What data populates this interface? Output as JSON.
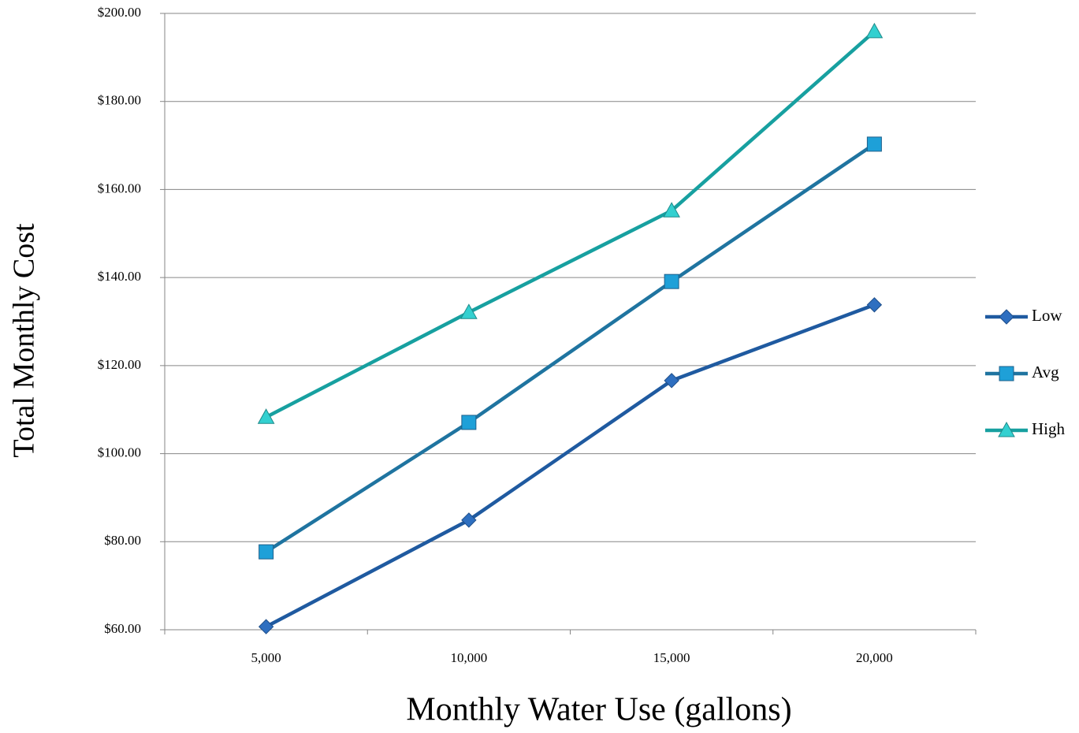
{
  "chart_data": {
    "type": "line",
    "x_label": "Monthly Water Use (gallons)",
    "y_label": "Total Monthly Cost",
    "categories": [
      "5,000",
      "10,000",
      "15,000",
      "20,000"
    ],
    "series": [
      {
        "name": "Low",
        "color": "#1f5aa0",
        "marker_color": "#2e6fc0",
        "marker": "diamond",
        "values": [
          60.7,
          84.9,
          116.6,
          133.8
        ]
      },
      {
        "name": "Avg",
        "color": "#1f74a0",
        "marker_color": "#1ea0d8",
        "marker": "square",
        "values": [
          77.7,
          107.1,
          139.1,
          170.3
        ]
      },
      {
        "name": "High",
        "color": "#17a0a0",
        "marker_color": "#33d0d0",
        "marker": "triangle",
        "values": [
          108.3,
          132.1,
          155.2,
          195.9
        ]
      }
    ],
    "ylim": [
      60,
      200
    ],
    "yticks": [
      {
        "value": 60,
        "label": "$60.00"
      },
      {
        "value": 80,
        "label": "$80.00"
      },
      {
        "value": 100,
        "label": "$100.00"
      },
      {
        "value": 120,
        "label": "$120.00"
      },
      {
        "value": 140,
        "label": "$140.00"
      },
      {
        "value": 160,
        "label": "$160.00"
      },
      {
        "value": 180,
        "label": "$180.00"
      },
      {
        "value": 200,
        "label": "$200.00"
      }
    ],
    "grid": true,
    "legend": "right"
  }
}
